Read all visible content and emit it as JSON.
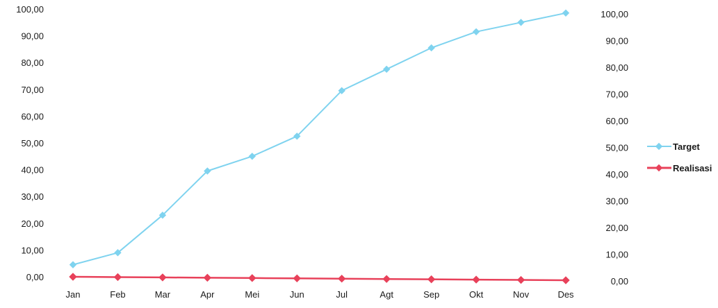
{
  "chart_data": {
    "type": "line",
    "categories": [
      "Jan",
      "Feb",
      "Mar",
      "Apr",
      "Mei",
      "Jun",
      "Jul",
      "Agt",
      "Sep",
      "Okt",
      "Nov",
      "Des"
    ],
    "series": [
      {
        "name": "Target",
        "color": "#7fd3ef",
        "marker": "diamond",
        "values": [
          4.5,
          9.0,
          23.0,
          39.5,
          45.0,
          52.5,
          69.5,
          77.5,
          85.5,
          91.5,
          95.0,
          98.5
        ]
      },
      {
        "name": "Realisasi",
        "color": "#e8415a",
        "marker": "diamond",
        "values": [
          0.0,
          0.0,
          0.0,
          0.0,
          0.0,
          0.0,
          0.0,
          0.0,
          0.0,
          0.0,
          0.0,
          0.0
        ]
      }
    ],
    "y_left": {
      "min": 0,
      "max": 100,
      "ticks": [
        "0,00",
        "10,00",
        "20,00",
        "30,00",
        "40,00",
        "50,00",
        "60,00",
        "70,00",
        "80,00",
        "90,00",
        "100,00"
      ]
    },
    "y_right": {
      "min": 0,
      "max": 100,
      "ticks": [
        "0,00",
        "10,00",
        "20,00",
        "30,00",
        "40,00",
        "50,00",
        "60,00",
        "70,00",
        "80,00",
        "90,00",
        "100,00"
      ]
    },
    "grid": false,
    "legend_position": "right"
  }
}
